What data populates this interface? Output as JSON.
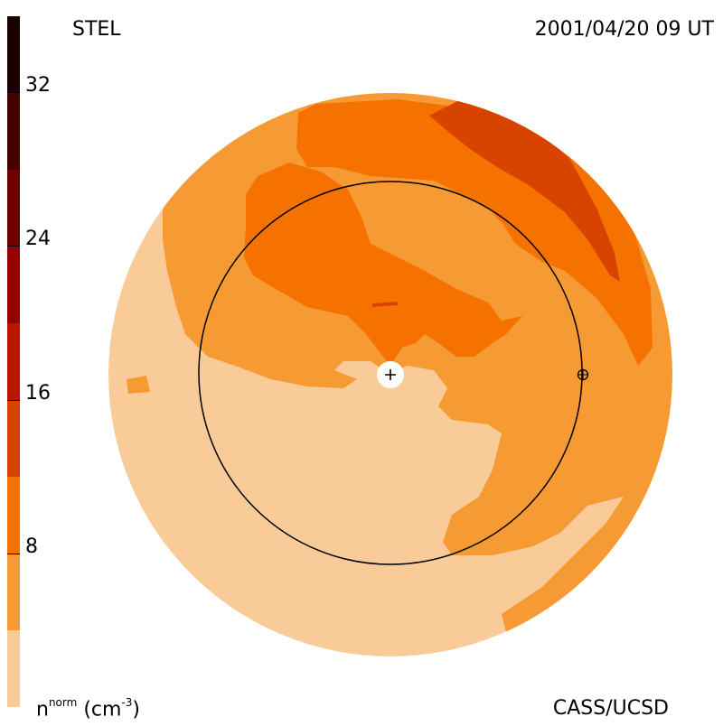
{
  "header": {
    "instrument": "STEL",
    "timestamp": "2001/04/20 09 UT"
  },
  "footer": {
    "unit_base": "n",
    "unit_sup": "norm",
    "unit_rest": "(cm",
    "unit_exp": "-3",
    "unit_close": ")",
    "credit": "CASS/UCSD"
  },
  "colorbar": {
    "ticks": [
      "32",
      "24",
      "16",
      "8"
    ],
    "tick_values": [
      32,
      24,
      16,
      8
    ],
    "range": [
      0,
      36
    ],
    "bands": [
      {
        "from": 0,
        "to": 4,
        "color": "#f8cb98"
      },
      {
        "from": 4,
        "to": 8,
        "color": "#f69b33"
      },
      {
        "from": 8,
        "to": 12,
        "color": "#f57200"
      },
      {
        "from": 12,
        "to": 16,
        "color": "#d94300"
      },
      {
        "from": 16,
        "to": 20,
        "color": "#bb1700"
      },
      {
        "from": 20,
        "to": 24,
        "color": "#950000"
      },
      {
        "from": 24,
        "to": 28,
        "color": "#6e0000"
      },
      {
        "from": 28,
        "to": 32,
        "color": "#450000"
      },
      {
        "from": 32,
        "to": 36,
        "color": "#1a0000"
      }
    ]
  },
  "colors": {
    "level_1": "#f8cb98",
    "level_2": "#f69b33",
    "level_3": "#f57200",
    "level_4": "#d94300"
  }
}
